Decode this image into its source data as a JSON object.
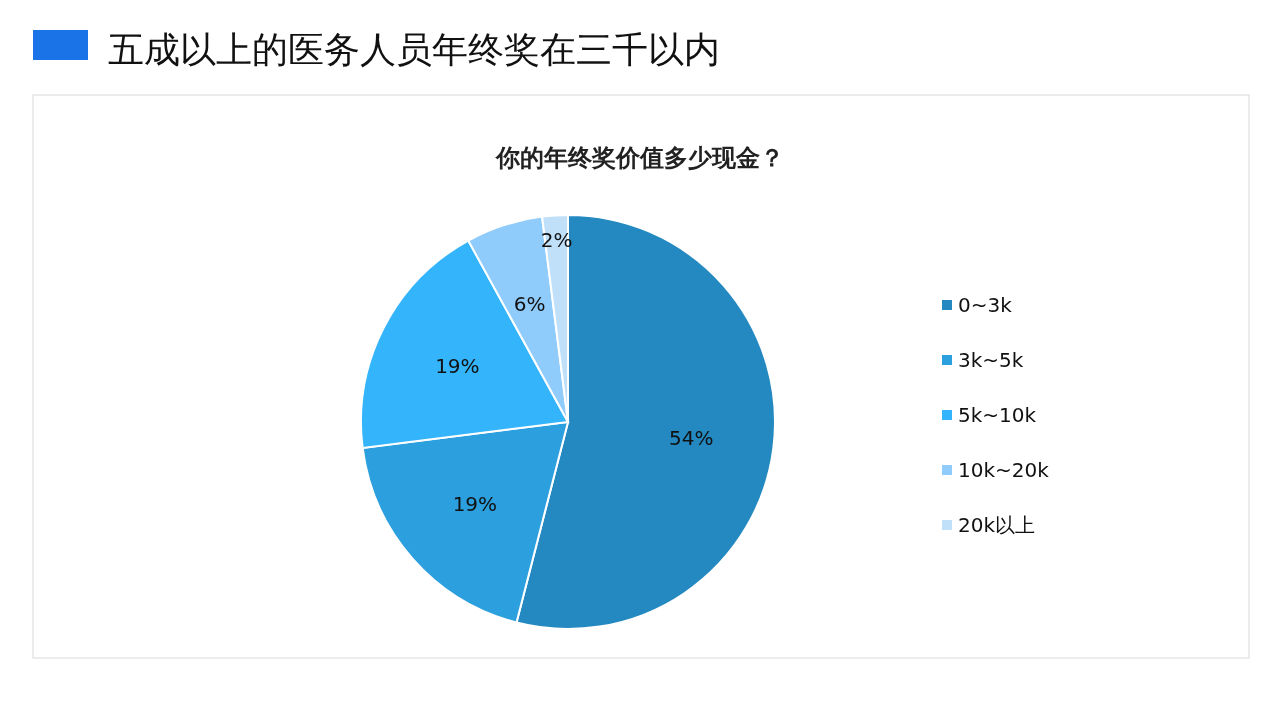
{
  "chart_data": {
    "type": "pie",
    "title": "五成以上的医务人员年终奖在三千以内",
    "subtitle": "你的年终奖价值多少现金？",
    "categories": [
      "0~3k",
      "3k~5k",
      "5k~10k",
      "10k~20k",
      "20k以上"
    ],
    "values": [
      54,
      19,
      19,
      6,
      2
    ],
    "colors": [
      "#2389c0",
      "#2c9fdf",
      "#33b4fb",
      "#8fcbfb",
      "#c0e0fa"
    ],
    "value_labels": [
      "54%",
      "19%",
      "19%",
      "6%",
      "2%"
    ],
    "legend": "right"
  }
}
